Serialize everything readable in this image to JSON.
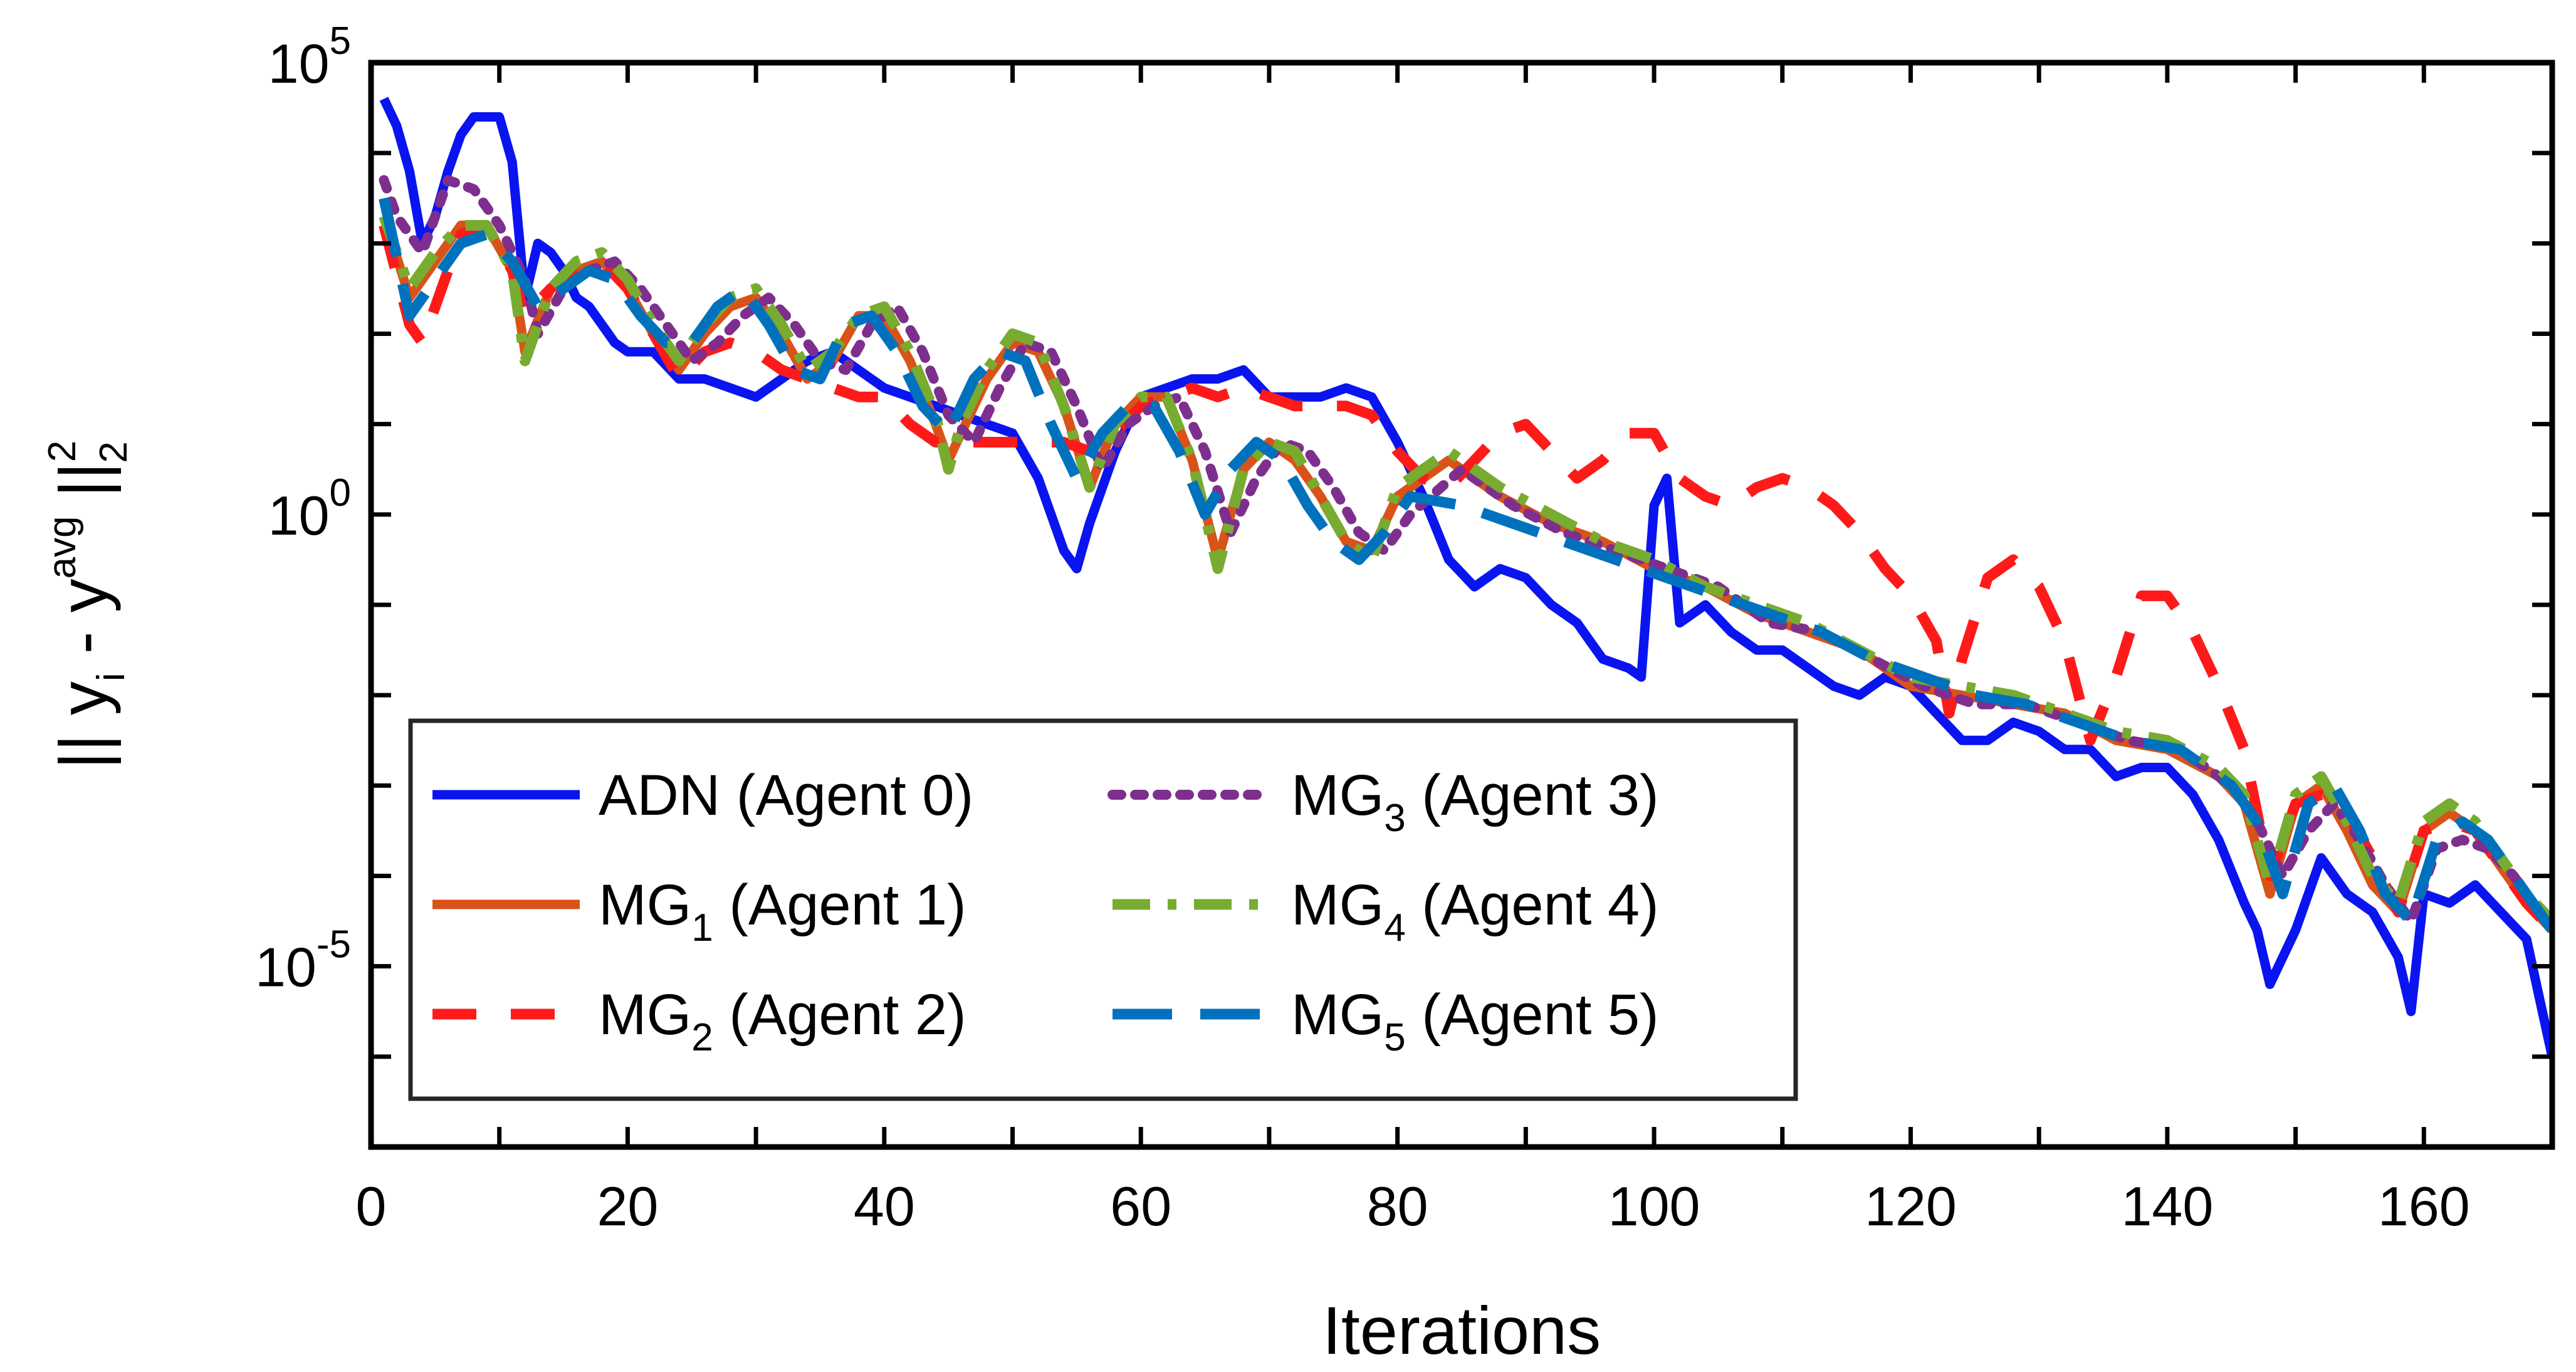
{
  "chart_data": {
    "type": "line",
    "xlabel": "Iterations",
    "ylabel": "|| y_i - y^avg ||_2^2",
    "ylabel_parts": {
      "base": "|| y",
      "sub_i": "i",
      "minus": " - y",
      "sup_avg": "avg",
      "norm": " ||",
      "sup_2": "2",
      "sub_2": "2"
    },
    "xlim": [
      0,
      170
    ],
    "ylim_log10": [
      -7,
      5
    ],
    "yscale": "log",
    "grid": false,
    "legend_placement": "lower-left",
    "x_ticks": [
      0,
      20,
      40,
      60,
      80,
      100,
      120,
      140,
      160
    ],
    "y_ticks": [
      {
        "exp": -5,
        "base": "10",
        "power": "-5"
      },
      {
        "exp": 0,
        "base": "10",
        "power": "0"
      },
      {
        "exp": 5,
        "base": "10",
        "power": "5"
      }
    ],
    "series": [
      {
        "name": "ADN (Agent 0)",
        "label_main": "ADN (Agent 0)",
        "label_sub": "",
        "label_after": "",
        "color": "#0a14f0",
        "dash": "solid",
        "x": [
          1,
          2,
          3,
          4,
          5,
          6,
          7,
          8,
          9,
          10,
          11,
          12,
          13,
          14,
          15,
          16,
          17,
          18,
          19,
          20,
          22,
          24,
          26,
          28,
          30,
          32,
          34,
          36,
          38,
          40,
          42,
          44,
          46,
          48,
          50,
          52,
          54,
          55,
          56,
          58,
          60,
          62,
          64,
          66,
          68,
          70,
          72,
          74,
          76,
          78,
          80,
          82,
          84,
          86,
          88,
          90,
          92,
          94,
          96,
          98,
          99,
          100,
          101,
          102,
          104,
          106,
          108,
          110,
          112,
          114,
          116,
          118,
          120,
          122,
          124,
          126,
          128,
          130,
          132,
          134,
          136,
          138,
          140,
          142,
          144,
          146,
          147,
          148,
          149,
          150,
          152,
          154,
          156,
          158,
          159,
          160,
          162,
          164,
          166,
          168,
          170
        ],
        "y": [
          4.6,
          4.3,
          3.8,
          3.0,
          3.3,
          3.8,
          4.2,
          4.4,
          4.4,
          4.4,
          3.9,
          2.4,
          3.0,
          2.9,
          2.7,
          2.4,
          2.3,
          2.1,
          1.9,
          1.8,
          1.8,
          1.5,
          1.5,
          1.4,
          1.3,
          1.5,
          1.7,
          1.8,
          1.6,
          1.4,
          1.3,
          1.2,
          1.1,
          1.0,
          0.9,
          0.4,
          -0.4,
          -0.6,
          -0.1,
          0.7,
          1.3,
          1.4,
          1.5,
          1.5,
          1.6,
          1.3,
          1.3,
          1.3,
          1.4,
          1.3,
          0.8,
          0.2,
          -0.5,
          -0.8,
          -0.6,
          -0.7,
          -1.0,
          -1.2,
          -1.6,
          -1.7,
          -1.8,
          0.1,
          0.4,
          -1.2,
          -1.0,
          -1.3,
          -1.5,
          -1.5,
          -1.7,
          -1.9,
          -2.0,
          -1.8,
          -1.9,
          -2.2,
          -2.5,
          -2.5,
          -2.3,
          -2.4,
          -2.6,
          -2.6,
          -2.9,
          -2.8,
          -2.8,
          -3.1,
          -3.6,
          -4.3,
          -4.6,
          -5.2,
          -4.9,
          -4.6,
          -3.8,
          -4.2,
          -4.4,
          -4.9,
          -5.5,
          -4.2,
          -4.3,
          -4.1,
          -4.4,
          -4.7,
          -6.0
        ]
      },
      {
        "name": "MG1 (Agent 1)",
        "label_main": "MG",
        "label_sub": "1",
        "label_after": " (Agent 1)",
        "color": "#d95319",
        "dash": "solid",
        "x": [
          1,
          3,
          5,
          7,
          9,
          11,
          12,
          14,
          16,
          18,
          20,
          22,
          24,
          26,
          28,
          30,
          32,
          34,
          36,
          38,
          40,
          42,
          44,
          45,
          46,
          48,
          50,
          52,
          54,
          56,
          58,
          60,
          62,
          64,
          66,
          68,
          70,
          72,
          74,
          76,
          78,
          80,
          84,
          88,
          92,
          96,
          100,
          104,
          108,
          112,
          116,
          120,
          124,
          128,
          132,
          136,
          140,
          144,
          146,
          148,
          150,
          152,
          154,
          156,
          158,
          160,
          162,
          164,
          166,
          168,
          170
        ],
        "y": [
          3.3,
          2.4,
          2.8,
          3.2,
          3.2,
          2.7,
          1.8,
          2.5,
          2.7,
          2.8,
          2.5,
          2.0,
          1.6,
          2.0,
          2.3,
          2.4,
          2.0,
          1.5,
          1.7,
          2.2,
          2.2,
          1.7,
          1.0,
          0.6,
          0.9,
          1.5,
          1.9,
          1.8,
          1.2,
          0.3,
          1.0,
          1.3,
          1.3,
          0.6,
          -0.5,
          0.5,
          0.8,
          0.6,
          0.2,
          -0.3,
          -0.4,
          0.2,
          0.6,
          0.2,
          -0.1,
          -0.3,
          -0.6,
          -0.8,
          -1.1,
          -1.3,
          -1.5,
          -1.9,
          -2.0,
          -2.1,
          -2.2,
          -2.5,
          -2.6,
          -2.9,
          -3.2,
          -4.2,
          -3.2,
          -3.0,
          -3.5,
          -4.1,
          -4.4,
          -3.5,
          -3.3,
          -3.5,
          -3.9,
          -4.3,
          -4.6
        ]
      },
      {
        "name": "MG2 (Agent 2)",
        "label_main": "MG",
        "label_sub": "2",
        "label_after": " (Agent 2)",
        "color": "#ff1a1a",
        "dash": "dashed",
        "x": [
          1,
          3,
          4,
          5,
          7,
          9,
          11,
          12,
          14,
          16,
          18,
          20,
          22,
          24,
          26,
          28,
          30,
          32,
          34,
          36,
          38,
          40,
          42,
          44,
          46,
          48,
          50,
          52,
          54,
          56,
          58,
          60,
          62,
          64,
          66,
          68,
          70,
          72,
          74,
          76,
          78,
          80,
          82,
          84,
          86,
          88,
          90,
          92,
          94,
          96,
          98,
          100,
          102,
          104,
          106,
          108,
          110,
          112,
          114,
          116,
          118,
          120,
          122,
          123,
          124,
          126,
          128,
          130,
          132,
          134,
          136,
          138,
          140,
          142,
          144,
          146,
          148,
          150,
          152,
          154,
          156,
          158,
          160,
          162,
          164,
          166,
          168,
          170
        ],
        "y": [
          3.2,
          2.1,
          1.9,
          2.3,
          3.1,
          3.2,
          2.7,
          2.2,
          2.5,
          2.7,
          2.8,
          2.5,
          2.0,
          1.5,
          1.8,
          1.9,
          1.8,
          1.6,
          1.5,
          1.4,
          1.3,
          1.3,
          1.0,
          0.8,
          0.8,
          0.8,
          0.8,
          0.8,
          0.8,
          0.7,
          0.9,
          1.2,
          1.3,
          1.4,
          1.3,
          1.4,
          1.3,
          1.2,
          1.2,
          1.2,
          1.1,
          0.7,
          0.4,
          0.3,
          0.6,
          0.9,
          1.0,
          0.7,
          0.4,
          0.6,
          0.9,
          0.9,
          0.4,
          0.2,
          0.1,
          0.3,
          0.4,
          0.3,
          0.1,
          -0.2,
          -0.6,
          -0.9,
          -1.4,
          -2.2,
          -1.6,
          -0.7,
          -0.5,
          -0.8,
          -1.4,
          -2.5,
          -1.8,
          -0.9,
          -0.9,
          -1.3,
          -1.9,
          -2.6,
          -4.0,
          -3.2,
          -3.1,
          -3.3,
          -3.8,
          -4.4,
          -3.5,
          -3.4,
          -3.5,
          -3.9,
          -4.3,
          -4.6
        ]
      },
      {
        "name": "MG3 (Agent 3)",
        "label_main": "MG",
        "label_sub": "3",
        "label_after": " (Agent 3)",
        "color": "#7e2f8e",
        "dash": "dotted",
        "x": [
          1,
          2,
          4,
          6,
          8,
          10,
          12,
          13,
          15,
          17,
          19,
          21,
          23,
          25,
          27,
          29,
          31,
          33,
          35,
          37,
          39,
          41,
          43,
          45,
          47,
          49,
          51,
          53,
          55,
          57,
          59,
          61,
          63,
          65,
          67,
          69,
          71,
          73,
          75,
          77,
          79,
          81,
          85,
          89,
          93,
          97,
          101,
          105,
          109,
          113,
          117,
          121,
          125,
          129,
          133,
          137,
          141,
          145,
          147,
          149,
          151,
          153,
          155,
          157,
          159,
          161,
          163,
          165,
          167,
          169
        ],
        "y": [
          3.7,
          3.3,
          2.9,
          3.7,
          3.6,
          3.2,
          2.6,
          2.0,
          2.5,
          2.7,
          2.8,
          2.5,
          2.1,
          1.7,
          1.9,
          2.2,
          2.4,
          2.1,
          1.7,
          1.6,
          2.1,
          2.3,
          1.8,
          1.1,
          0.8,
          1.4,
          1.9,
          1.8,
          1.2,
          0.5,
          1.0,
          1.2,
          1.3,
          0.7,
          -0.2,
          0.4,
          0.8,
          0.7,
          0.3,
          -0.2,
          -0.4,
          0.0,
          0.5,
          0.1,
          -0.2,
          -0.4,
          -0.6,
          -0.8,
          -1.2,
          -1.3,
          -1.6,
          -1.9,
          -2.1,
          -2.1,
          -2.3,
          -2.5,
          -2.6,
          -3.0,
          -3.4,
          -4.0,
          -3.5,
          -3.2,
          -3.6,
          -4.1,
          -4.5,
          -3.7,
          -3.6,
          -3.7,
          -4.0,
          -4.4
        ]
      },
      {
        "name": "MG4 (Agent 4)",
        "label_main": "MG",
        "label_sub": "4",
        "label_after": " (Agent 4)",
        "color": "#77ac30",
        "dash": "dashdot",
        "x": [
          1,
          3,
          5,
          7,
          9,
          11,
          12,
          14,
          16,
          18,
          20,
          22,
          24,
          26,
          28,
          30,
          32,
          34,
          36,
          38,
          40,
          42,
          44,
          45,
          46,
          48,
          50,
          52,
          54,
          56,
          58,
          60,
          62,
          64,
          66,
          68,
          70,
          72,
          74,
          76,
          78,
          80,
          84,
          88,
          92,
          96,
          100,
          104,
          108,
          112,
          116,
          120,
          124,
          128,
          132,
          136,
          140,
          144,
          146,
          148,
          150,
          152,
          154,
          156,
          158,
          160,
          162,
          164,
          166,
          168,
          170
        ],
        "y": [
          3.3,
          2.5,
          2.9,
          3.2,
          3.2,
          2.7,
          1.7,
          2.5,
          2.8,
          2.9,
          2.6,
          2.1,
          1.7,
          2.1,
          2.4,
          2.5,
          2.1,
          1.6,
          1.8,
          2.2,
          2.3,
          1.8,
          1.1,
          0.5,
          1.0,
          1.6,
          2.0,
          1.9,
          1.2,
          0.3,
          1.0,
          1.3,
          1.3,
          0.6,
          -0.6,
          0.5,
          0.8,
          0.7,
          0.2,
          -0.3,
          -0.5,
          0.3,
          0.7,
          0.3,
          0.0,
          -0.3,
          -0.5,
          -0.8,
          -1.0,
          -1.2,
          -1.5,
          -1.8,
          -1.9,
          -2.0,
          -2.2,
          -2.4,
          -2.5,
          -2.8,
          -3.1,
          -4.1,
          -3.1,
          -2.9,
          -3.4,
          -4.0,
          -4.3,
          -3.4,
          -3.2,
          -3.4,
          -3.8,
          -4.2,
          -4.5
        ]
      },
      {
        "name": "MG5 (Agent 5)",
        "label_main": "MG",
        "label_sub": "5",
        "label_after": " (Agent 5)",
        "color": "#0072bd",
        "dash": "longdash",
        "x": [
          1,
          3,
          5,
          7,
          9,
          11,
          13,
          15,
          17,
          19,
          21,
          23,
          25,
          27,
          29,
          31,
          33,
          35,
          37,
          39,
          41,
          43,
          45,
          47,
          49,
          51,
          53,
          55,
          57,
          59,
          61,
          63,
          65,
          67,
          69,
          71,
          73,
          75,
          77,
          79,
          81,
          85,
          89,
          93,
          97,
          101,
          105,
          109,
          113,
          117,
          121,
          125,
          129,
          133,
          137,
          141,
          143,
          145,
          147,
          149,
          151,
          153,
          155,
          157,
          159,
          161,
          163,
          165,
          167,
          169,
          170
        ],
        "y": [
          3.5,
          2.2,
          2.6,
          3.0,
          3.1,
          2.8,
          2.3,
          2.5,
          2.7,
          2.6,
          2.2,
          1.9,
          1.9,
          2.3,
          2.5,
          2.1,
          1.6,
          1.5,
          2.1,
          2.2,
          1.8,
          1.2,
          0.9,
          1.5,
          1.8,
          1.7,
          1.0,
          0.4,
          0.9,
          1.2,
          1.2,
          0.7,
          0.0,
          0.5,
          0.8,
          0.6,
          0.1,
          -0.3,
          -0.5,
          -0.2,
          0.2,
          0.1,
          -0.1,
          -0.3,
          -0.5,
          -0.7,
          -0.9,
          -1.1,
          -1.3,
          -1.6,
          -1.8,
          -2.0,
          -2.1,
          -2.3,
          -2.5,
          -2.6,
          -2.8,
          -3.0,
          -3.4,
          -4.2,
          -3.2,
          -3.0,
          -3.5,
          -4.2,
          -4.5,
          -3.6,
          -3.4,
          -3.6,
          -4.0,
          -4.4,
          -4.6
        ]
      }
    ]
  }
}
